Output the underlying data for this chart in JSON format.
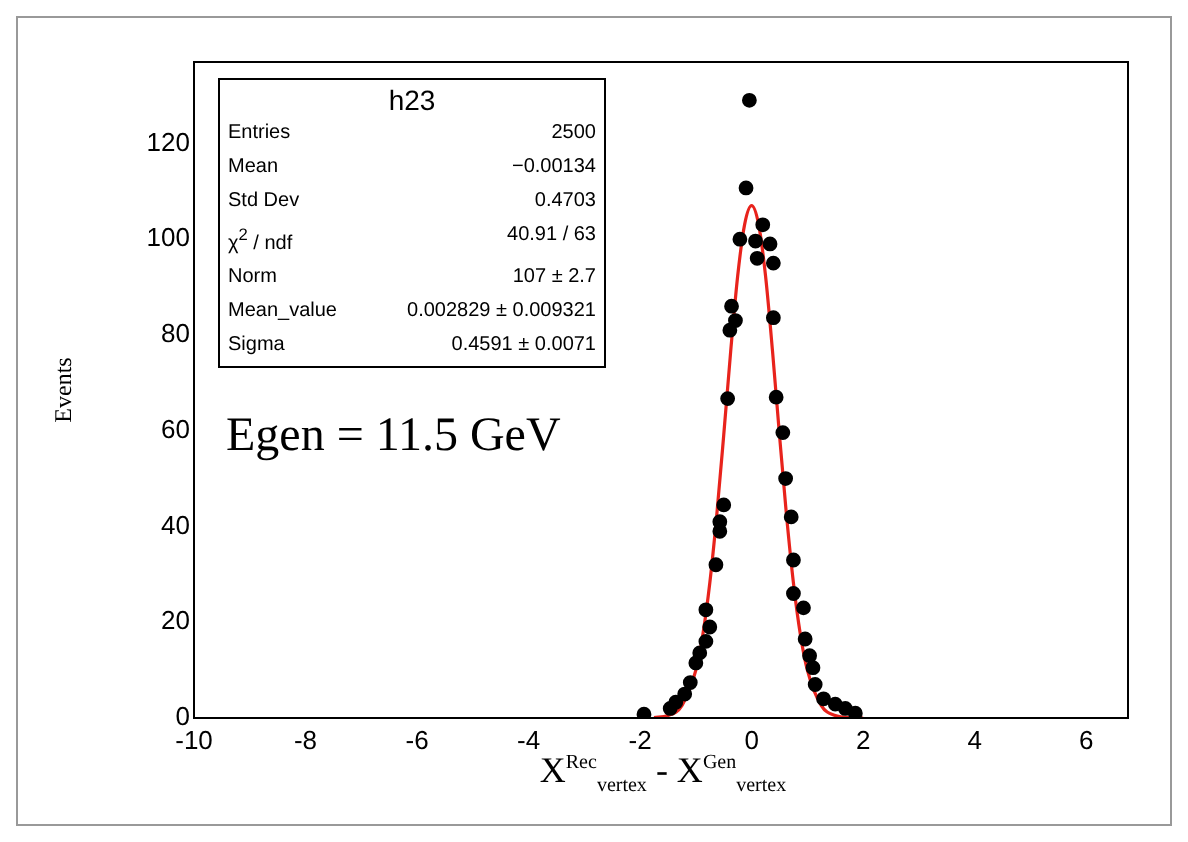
{
  "chart_data": {
    "type": "scatter",
    "ylabel": "Events",
    "xlabel": "X$^{Rec}$$_{vertex}$ - X$^{Gen}$$_{vertex}$",
    "annotations": [
      "h23",
      "Entries",
      "2500",
      "Mean",
      "−0.00134",
      "Std Dev",
      "0.4703",
      "χ$^{2}$ / ndf",
      "40.91 / 63",
      "Norm",
      "107 ± 2.7",
      "Mean_value",
      "0.002829 ± 0.009321",
      "Sigma",
      "0.4591 ± 0.0071",
      "Egen = 11.5 GeV"
    ],
    "xlim": [
      -10,
      6.75
    ],
    "xticks": [
      -10,
      -8,
      -6,
      -4,
      -2,
      0,
      2,
      4,
      6
    ],
    "ylim": [
      0,
      137
    ],
    "yticks": [
      0,
      20,
      40,
      60,
      80,
      100,
      120
    ],
    "grid": false,
    "legend": false,
    "series": [
      {
        "marker": "circle",
        "color": "#000000",
        "x": [
          -1.93,
          -1.46,
          -1.36,
          -1.2,
          -1.1,
          -1.0,
          -0.93,
          -0.82,
          -0.82,
          -0.75,
          -0.64,
          -0.57,
          -0.57,
          -0.5,
          -0.43,
          -0.39,
          -0.36,
          -0.29,
          -0.21,
          -0.1,
          -0.04,
          0.07,
          0.1,
          0.2,
          0.33,
          0.39,
          0.39,
          0.44,
          0.56,
          0.61,
          0.71,
          0.75,
          0.75,
          0.93,
          0.96,
          1.04,
          1.1,
          1.14,
          1.29,
          1.5,
          1.68,
          1.86
        ],
        "values": [
          0.8,
          2,
          3.3,
          5,
          7.4,
          11.5,
          13.6,
          16,
          22.6,
          19,
          32,
          39,
          41,
          44.5,
          66.7,
          81,
          86,
          83,
          100,
          110.7,
          129,
          99.6,
          96,
          103,
          99,
          95,
          83.6,
          67,
          59.6,
          50,
          42,
          33,
          26,
          23,
          16.5,
          13,
          10.5,
          7,
          4,
          2.9,
          2,
          1
        ]
      },
      {
        "type": "line",
        "marker": "none",
        "line_style": "solid",
        "color": "#e8231c",
        "x": [
          -1.75,
          -1.5,
          -1.25,
          -1,
          -0.875,
          -0.75,
          -0.625,
          -0.5,
          -0.375,
          -0.25,
          -0.125,
          0,
          0.125,
          0.25,
          0.375,
          0.5,
          0.625,
          0.75,
          0.875,
          1,
          1.25,
          1.5,
          1.75,
          2
        ],
        "values": [
          0.1,
          0.5,
          2.6,
          10.0,
          17.4,
          28.2,
          42.4,
          59.1,
          76.6,
          92.3,
          103.1,
          107,
          103.1,
          92.3,
          76.6,
          59.1,
          42.4,
          28.2,
          17.4,
          10.0,
          2.6,
          0.5,
          0.1,
          0
        ]
      }
    ]
  }
}
